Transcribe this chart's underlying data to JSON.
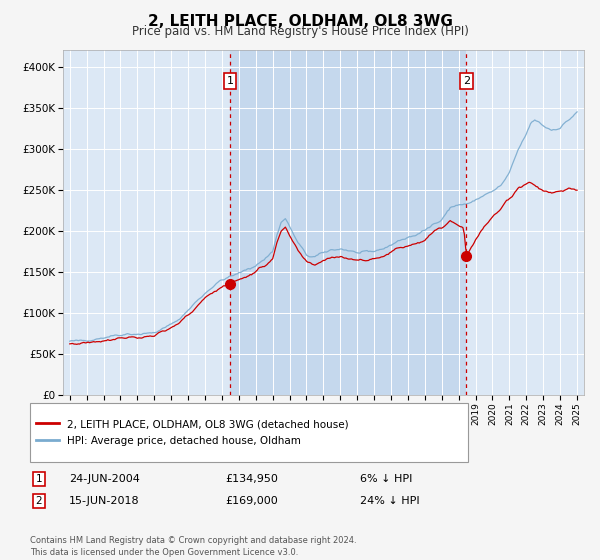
{
  "title": "2, LEITH PLACE, OLDHAM, OL8 3WG",
  "subtitle": "Price paid vs. HM Land Registry's House Price Index (HPI)",
  "legend_line1": "2, LEITH PLACE, OLDHAM, OL8 3WG (detached house)",
  "legend_line2": "HPI: Average price, detached house, Oldham",
  "transaction1_date": "24-JUN-2004",
  "transaction1_price": 134950,
  "transaction1_label": "£134,950",
  "transaction1_hpi_pct": "6% ↓ HPI",
  "transaction2_date": "15-JUN-2018",
  "transaction2_price": 169000,
  "transaction2_label": "£169,000",
  "transaction2_hpi_pct": "24% ↓ HPI",
  "footer": "Contains HM Land Registry data © Crown copyright and database right 2024.\nThis data is licensed under the Open Government Licence v3.0.",
  "fig_bg_color": "#f5f5f5",
  "plot_bg_color": "#dce8f5",
  "shaded_region_color": "#c5d8ed",
  "line_color_red": "#cc0000",
  "line_color_blue": "#7aabcf",
  "ylim": [
    0,
    420000
  ],
  "yticks": [
    0,
    50000,
    100000,
    150000,
    200000,
    250000,
    300000,
    350000,
    400000
  ],
  "transaction1_year": 2004.47,
  "transaction2_year": 2018.46,
  "transaction1_price_val": 134950,
  "transaction2_price_val": 169000
}
